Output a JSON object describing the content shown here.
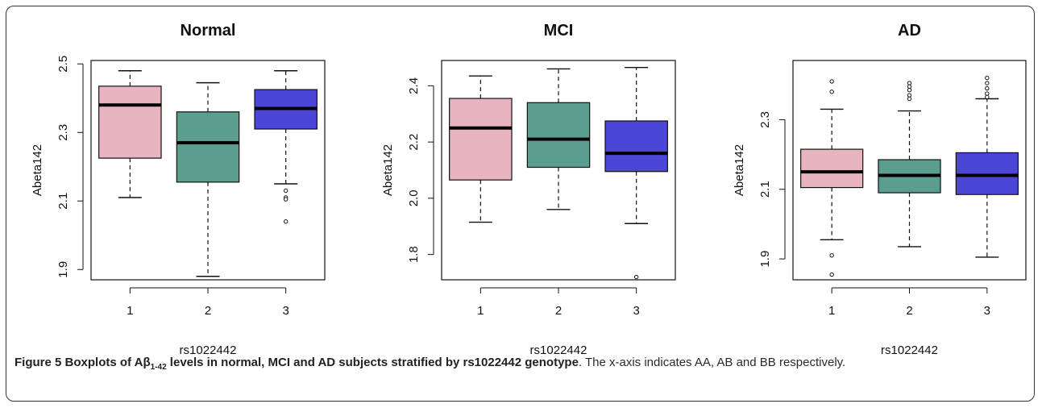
{
  "figure": {
    "caption_label": "Figure 5",
    "caption_bold_pre": "Boxplots of Aβ",
    "caption_bold_sub": "1-42",
    "caption_bold_post": " levels in normal, MCI and AD subjects stratified by rs1022442 genotype",
    "caption_rest": ". The x-axis indicates AA, AB and BB respectively."
  },
  "chart_data": [
    {
      "type": "box",
      "title": "Normal",
      "xlabel": "rs1022442",
      "ylabel": "Abeta142",
      "categories": [
        "1",
        "2",
        "3"
      ],
      "ylim": [
        1.87,
        2.51
      ],
      "yticks": [
        1.9,
        2.1,
        2.3,
        2.5
      ],
      "ytick_labels": [
        "1.9",
        "2.1",
        "2.3",
        "2.5"
      ],
      "colors": [
        "#e8b4c0",
        "#5b9e90",
        "#4b46d6"
      ],
      "boxes": [
        {
          "whisker_low": 2.11,
          "q1": 2.225,
          "median": 2.38,
          "q3": 2.435,
          "whisker_high": 2.48,
          "outliers": []
        },
        {
          "whisker_low": 1.88,
          "q1": 2.155,
          "median": 2.27,
          "q3": 2.36,
          "whisker_high": 2.445,
          "outliers": []
        },
        {
          "whisker_low": 2.15,
          "q1": 2.31,
          "median": 2.37,
          "q3": 2.425,
          "whisker_high": 2.48,
          "outliers": [
            2.13,
            2.11,
            2.105,
            2.04
          ]
        }
      ]
    },
    {
      "type": "box",
      "title": "MCI",
      "xlabel": "rs1022442",
      "ylabel": "Abeta142",
      "categories": [
        "1",
        "2",
        "3"
      ],
      "ylim": [
        1.71,
        2.49
      ],
      "yticks": [
        1.8,
        2.0,
        2.2,
        2.4
      ],
      "ytick_labels": [
        "1.8",
        "2.0",
        "2.2",
        "2.4"
      ],
      "colors": [
        "#e8b4c0",
        "#5b9e90",
        "#4b46d6"
      ],
      "boxes": [
        {
          "whisker_low": 1.915,
          "q1": 2.065,
          "median": 2.25,
          "q3": 2.355,
          "whisker_high": 2.435,
          "outliers": []
        },
        {
          "whisker_low": 1.96,
          "q1": 2.11,
          "median": 2.21,
          "q3": 2.34,
          "whisker_high": 2.46,
          "outliers": []
        },
        {
          "whisker_low": 1.91,
          "q1": 2.095,
          "median": 2.16,
          "q3": 2.275,
          "whisker_high": 2.465,
          "outliers": [
            1.72
          ]
        }
      ]
    },
    {
      "type": "box",
      "title": "AD",
      "xlabel": "rs1022442",
      "ylabel": "Abeta142",
      "categories": [
        "1",
        "2",
        "3"
      ],
      "ylim": [
        1.84,
        2.47
      ],
      "yticks": [
        1.9,
        2.1,
        2.3
      ],
      "ytick_labels": [
        "1.9",
        "2.1",
        "2.3"
      ],
      "colors": [
        "#e8b4c0",
        "#5b9e90",
        "#4b46d6"
      ],
      "boxes": [
        {
          "whisker_low": 1.955,
          "q1": 2.105,
          "median": 2.15,
          "q3": 2.215,
          "whisker_high": 2.33,
          "outliers": [
            2.41,
            2.38,
            1.91,
            1.855
          ]
        },
        {
          "whisker_low": 1.935,
          "q1": 2.09,
          "median": 2.14,
          "q3": 2.185,
          "whisker_high": 2.325,
          "outliers": [
            2.405,
            2.395,
            2.385,
            2.37,
            2.36
          ]
        },
        {
          "whisker_low": 1.905,
          "q1": 2.085,
          "median": 2.14,
          "q3": 2.205,
          "whisker_high": 2.36,
          "outliers": [
            2.42,
            2.405,
            2.39,
            2.375,
            2.365
          ]
        }
      ]
    }
  ]
}
